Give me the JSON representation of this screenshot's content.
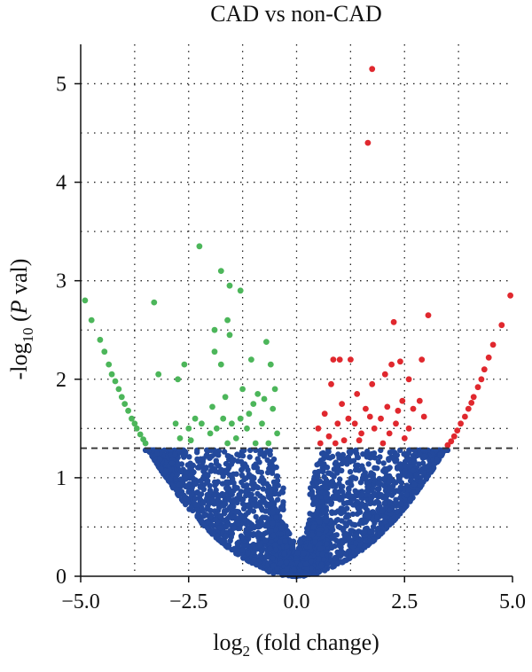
{
  "chart_data": {
    "type": "scatter",
    "title": "CAD vs non-CAD",
    "xlabel": {
      "prefix": "log",
      "sub": "2",
      "suffix": " (fold change)"
    },
    "ylabel": {
      "prefix": "-log",
      "sub": "10",
      "mid": " (",
      "ital": "P",
      "suffix": " val)"
    },
    "xlim": [
      -5,
      5
    ],
    "ylim": [
      0,
      5.4
    ],
    "xticks": [
      -5,
      -2.5,
      0,
      2.5,
      5
    ],
    "xtick_labels": [
      "−5.0",
      "−2.5",
      "0.0",
      "2.5",
      "5.0"
    ],
    "yticks": [
      0,
      1,
      2,
      3,
      4,
      5
    ],
    "ytick_labels": [
      "0",
      "1",
      "2",
      "3",
      "4",
      "5"
    ],
    "grid_x": [
      -3.75,
      -2.5,
      -1.25,
      0,
      1.25,
      2.5,
      3.75
    ],
    "grid_y": [
      0.5,
      1,
      1.5,
      2,
      2.5,
      3,
      3.5,
      4,
      4.5,
      5
    ],
    "threshold_y": 1.3,
    "colors": {
      "up": "#e0282e",
      "down": "#4cb65a",
      "ns": "#23499c"
    },
    "series": [
      {
        "id": "down",
        "points": [
          [
            -4.9,
            2.8
          ],
          [
            -4.75,
            2.6
          ],
          [
            -4.55,
            2.4
          ],
          [
            -4.45,
            2.28
          ],
          [
            -4.35,
            2.15
          ],
          [
            -4.28,
            2.05
          ],
          [
            -4.2,
            1.98
          ],
          [
            -4.12,
            1.9
          ],
          [
            -4.05,
            1.82
          ],
          [
            -3.98,
            1.75
          ],
          [
            -3.9,
            1.68
          ],
          [
            -3.82,
            1.6
          ],
          [
            -3.75,
            1.55
          ],
          [
            -3.7,
            1.5
          ],
          [
            -3.62,
            1.44
          ],
          [
            -3.55,
            1.39
          ],
          [
            -3.5,
            1.35
          ],
          [
            -3.3,
            2.78
          ],
          [
            -3.2,
            2.05
          ],
          [
            -2.75,
            2.0
          ],
          [
            -2.6,
            2.15
          ],
          [
            -2.25,
            3.35
          ],
          [
            -1.75,
            3.1
          ],
          [
            -1.55,
            2.95
          ],
          [
            -1.3,
            2.9
          ],
          [
            -1.75,
            2.15
          ],
          [
            -1.9,
            2.5
          ],
          [
            -1.6,
            2.6
          ],
          [
            -1.55,
            2.45
          ],
          [
            -1.9,
            2.28
          ],
          [
            -1.05,
            2.2
          ],
          [
            -0.7,
            2.38
          ],
          [
            -0.6,
            2.15
          ],
          [
            -0.5,
            1.9
          ],
          [
            -0.55,
            1.7
          ],
          [
            -0.9,
            1.85
          ],
          [
            -1.0,
            1.75
          ],
          [
            -0.75,
            1.8
          ],
          [
            -1.1,
            1.65
          ],
          [
            -1.3,
            1.6
          ],
          [
            -1.5,
            1.55
          ],
          [
            -1.7,
            1.6
          ],
          [
            -1.85,
            1.5
          ],
          [
            -2.0,
            1.45
          ],
          [
            -2.2,
            1.55
          ],
          [
            -2.5,
            1.5
          ],
          [
            -2.7,
            1.4
          ],
          [
            -1.4,
            1.4
          ],
          [
            -1.15,
            1.5
          ],
          [
            -0.8,
            1.55
          ],
          [
            -0.45,
            1.45
          ],
          [
            -1.95,
            1.72
          ],
          [
            -2.45,
            1.38
          ],
          [
            -1.6,
            1.35
          ],
          [
            -0.65,
            1.35
          ],
          [
            -2.35,
            1.6
          ],
          [
            -1.25,
            1.9
          ],
          [
            -0.95,
            1.35
          ],
          [
            -2.8,
            1.55
          ],
          [
            -1.65,
            1.82
          ]
        ]
      },
      {
        "id": "up",
        "points": [
          [
            1.75,
            5.15
          ],
          [
            1.65,
            4.4
          ],
          [
            4.95,
            2.85
          ],
          [
            4.75,
            2.55
          ],
          [
            4.55,
            2.35
          ],
          [
            4.45,
            2.22
          ],
          [
            4.35,
            2.1
          ],
          [
            4.28,
            2.0
          ],
          [
            4.2,
            1.92
          ],
          [
            4.1,
            1.82
          ],
          [
            4.05,
            1.76
          ],
          [
            3.98,
            1.7
          ],
          [
            3.9,
            1.62
          ],
          [
            3.8,
            1.55
          ],
          [
            3.72,
            1.48
          ],
          [
            3.65,
            1.42
          ],
          [
            3.58,
            1.37
          ],
          [
            3.5,
            1.33
          ],
          [
            3.05,
            2.65
          ],
          [
            2.25,
            2.58
          ],
          [
            2.9,
            2.2
          ],
          [
            2.4,
            2.18
          ],
          [
            2.2,
            2.15
          ],
          [
            1.0,
            2.2
          ],
          [
            1.25,
            2.2
          ],
          [
            0.85,
            2.2
          ],
          [
            2.6,
            2.0
          ],
          [
            2.05,
            2.05
          ],
          [
            1.75,
            1.95
          ],
          [
            0.8,
            1.95
          ],
          [
            1.4,
            1.85
          ],
          [
            2.45,
            1.78
          ],
          [
            2.7,
            1.7
          ],
          [
            2.85,
            1.78
          ],
          [
            1.05,
            1.75
          ],
          [
            0.65,
            1.65
          ],
          [
            1.6,
            1.7
          ],
          [
            1.95,
            1.6
          ],
          [
            2.3,
            1.55
          ],
          [
            1.2,
            1.6
          ],
          [
            0.95,
            1.55
          ],
          [
            0.5,
            1.5
          ],
          [
            1.5,
            1.45
          ],
          [
            1.8,
            1.5
          ],
          [
            2.15,
            1.45
          ],
          [
            2.5,
            1.4
          ],
          [
            0.75,
            1.42
          ],
          [
            1.1,
            1.38
          ],
          [
            2.0,
            1.35
          ],
          [
            0.55,
            1.35
          ],
          [
            1.35,
            1.55
          ],
          [
            2.95,
            1.62
          ],
          [
            1.7,
            1.62
          ],
          [
            2.6,
            1.5
          ],
          [
            0.9,
            1.35
          ],
          [
            2.35,
            1.68
          ],
          [
            1.45,
            1.38
          ],
          [
            2.1,
            1.72
          ]
        ]
      }
    ]
  }
}
